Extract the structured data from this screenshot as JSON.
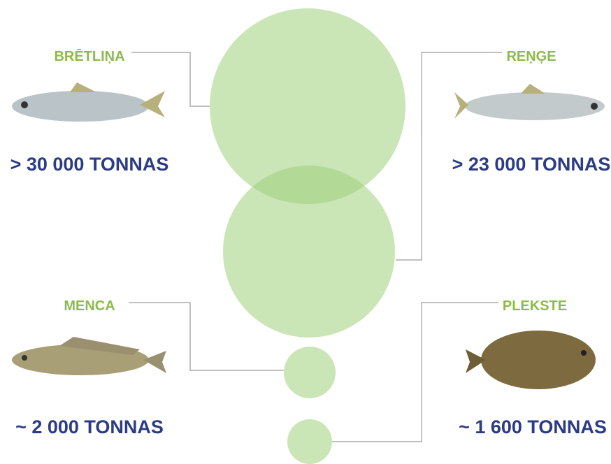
{
  "items": [
    {
      "name": "BRĒTLIŅA",
      "amount": "> 30 000 TONNAS"
    },
    {
      "name": "REŅĢE",
      "amount": "> 23 000 TONNAS"
    },
    {
      "name": "MENCA",
      "amount": "~ 2 000 TONNAS"
    },
    {
      "name": "PLEKSTE",
      "amount": "~ 1 600 TONNAS"
    }
  ]
}
